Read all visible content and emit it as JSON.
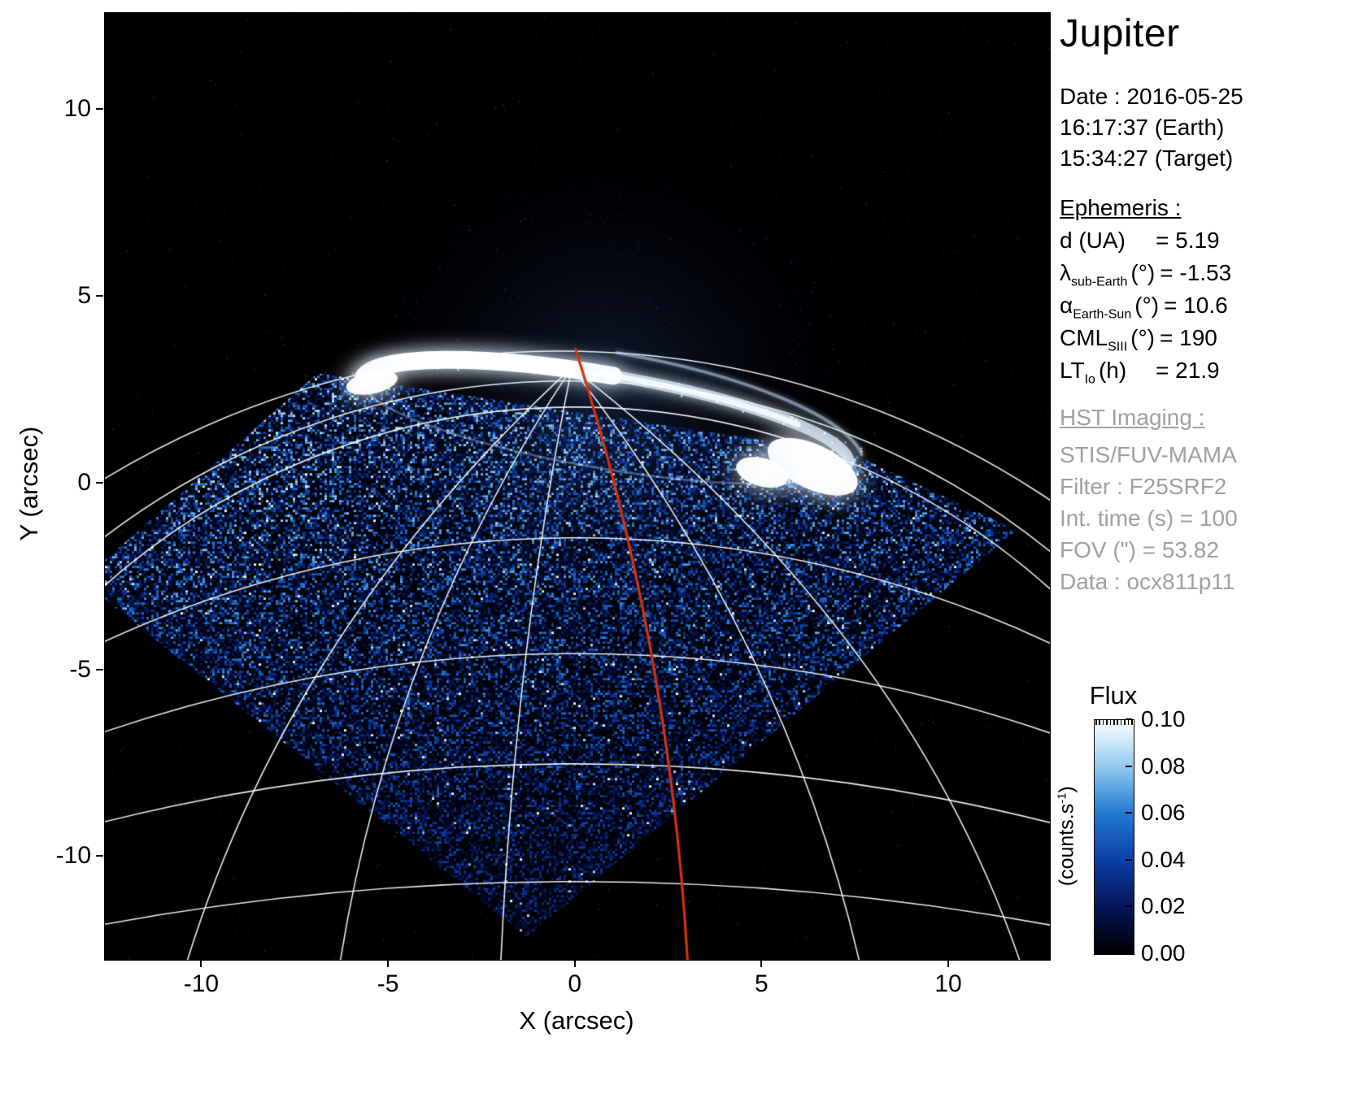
{
  "title": "Jupiter",
  "info": {
    "date_lines": [
      "Date : 2016-05-25",
      "16:17:37 (Earth)",
      "15:34:27 (Target)"
    ]
  },
  "ephemeris": {
    "heading": "Ephemeris :",
    "rows": [
      {
        "main": "d (UA)",
        "sub": "",
        "unit": "",
        "value": "= 5.19"
      },
      {
        "main": "λ",
        "sub": "sub-Earth",
        "unit": "(°)",
        "value": "= -1.53"
      },
      {
        "main": "α",
        "sub": "Earth-Sun",
        "unit": "(°)",
        "value": "= 10.6"
      },
      {
        "main": "CML",
        "sub": "SIII",
        "unit": "(°)",
        "value": "= 190"
      },
      {
        "main": "LT",
        "sub": "Io",
        "unit": "(h)",
        "value": "= 21.9"
      }
    ]
  },
  "hst": {
    "heading": "HST Imaging :",
    "lines": [
      "STIS/FUV-MAMA",
      "Filter : F25SRF2",
      "Int. time (s) = 100",
      "FOV (\") = 53.82",
      "Data : ocx811p11"
    ]
  },
  "chart_data": {
    "type": "heatmap",
    "description": "HST/STIS far-UV image of Jupiter's northern aurora: noisy blue disk emission inside a diamond-shaped detector field of view, bright white auroral oval near the top, white planetary latitude/longitude graticule, and a red central-meridian (CML) line.",
    "xlabel": "X (arcsec)",
    "ylabel": "Y (arcsec)",
    "xlim": [
      -12.6,
      12.7
    ],
    "ylim": [
      -12.76,
      12.6
    ],
    "x_ticks": [
      -10,
      -5,
      0,
      5,
      10
    ],
    "y_ticks": [
      10,
      5,
      0,
      -5,
      -10
    ],
    "grid": false,
    "colorbar": {
      "title": "Flux",
      "unit_prefix": "(counts.s",
      "unit_sup": "-1",
      "unit_suffix": ")",
      "range": [
        0.0,
        0.1
      ],
      "tick_labels": [
        "0.10",
        "0.08",
        "0.06",
        "0.04",
        "0.02",
        "0.00"
      ],
      "stops": [
        [
          0,
          "#000000"
        ],
        [
          0.2,
          "#041457"
        ],
        [
          0.4,
          "#0a3fa8"
        ],
        [
          0.6,
          "#2079d2"
        ],
        [
          0.8,
          "#90c9ef"
        ],
        [
          1,
          "#ffffff"
        ]
      ]
    },
    "image": {
      "background": "#000000",
      "fov_polygon": [
        [
          -6.9,
          2.95
        ],
        [
          -12.6,
          -2.05
        ],
        [
          -12.6,
          -3.1
        ],
        [
          -1.3,
          -12.15
        ],
        [
          11.8,
          -1.25
        ],
        [
          7.4,
          0.8
        ]
      ],
      "aurora": {
        "center": [
          0.8,
          1.65
        ],
        "rx": 6.6,
        "ry": 1.25,
        "rot_deg": -9.7,
        "blobs": [
          {
            "c": [
              6.35,
              0.45
            ],
            "rx": 1.3,
            "ry": 0.6,
            "rot_deg": -25
          },
          {
            "c": [
              5.0,
              0.3
            ],
            "rx": 0.72,
            "ry": 0.38,
            "rot_deg": -15
          },
          {
            "c": [
              -5.45,
              2.7
            ],
            "rx": 0.7,
            "ry": 0.3,
            "rot_deg": 12
          }
        ]
      },
      "graticule": {
        "latitude_arcs": [
          {
            "apex": [
              -0.4,
              3.55
            ],
            "r": 23.5
          },
          {
            "apex": [
              -0.2,
              2.75
            ],
            "r": 20.5
          },
          {
            "apex": [
              0.0,
              2.05
            ],
            "r": 19.0
          },
          {
            "apex": [
              0.0,
              -1.45
            ],
            "r": 30.0
          },
          {
            "apex": [
              0.0,
              -4.55
            ],
            "r": 39.0
          },
          {
            "apex": [
              0.0,
              -7.5
            ],
            "r": 52.0
          },
          {
            "apex": [
              0.0,
              -10.65
            ],
            "r": 70.0
          }
        ],
        "meridians": {
          "pole": [
            -0.1,
            3.1
          ],
          "curves": [
            {
              "ctrl": [
                -7.6,
                -3.8
              ],
              "end": [
                -10.4,
                -12.8
              ]
            },
            {
              "ctrl": [
                -4.9,
                -4.1
              ],
              "end": [
                -6.3,
                -12.8
              ]
            },
            {
              "ctrl": [
                -1.6,
                -4.3
              ],
              "end": [
                -2.0,
                -12.8
              ]
            },
            {
              "ctrl": [
                5.6,
                -4.2
              ],
              "end": [
                7.6,
                -12.8
              ]
            },
            {
              "ctrl": [
                8.8,
                -3.8
              ],
              "end": [
                11.9,
                -12.8
              ]
            }
          ]
        }
      },
      "cml": {
        "color": "#d4320d",
        "start": [
          0.0,
          3.6
        ],
        "ctrl": [
          2.5,
          -4.2
        ],
        "end": [
          3.0,
          -12.8
        ]
      }
    }
  }
}
